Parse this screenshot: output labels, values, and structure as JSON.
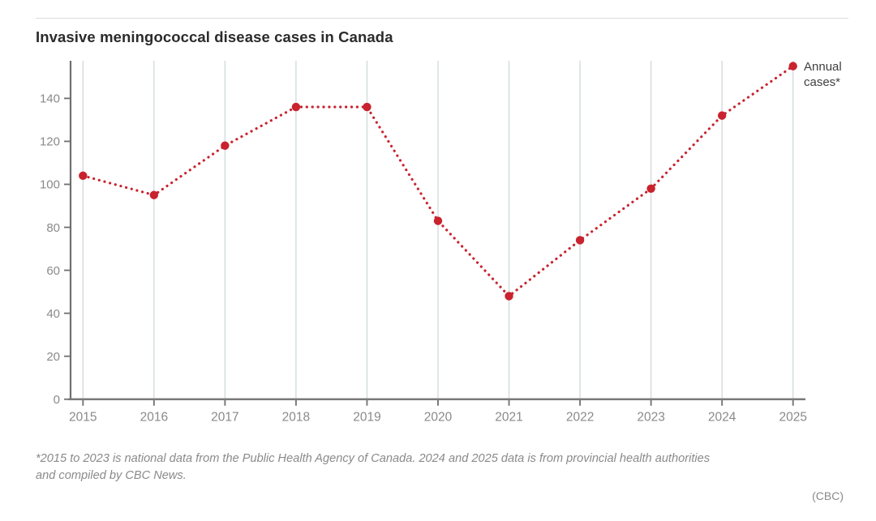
{
  "header": {
    "title": "Invasive meningococcal disease cases in Canada"
  },
  "chart_data": {
    "type": "line",
    "line_style": "dotted",
    "title": "Invasive meningococcal disease cases in Canada",
    "categories": [
      2015,
      2016,
      2017,
      2018,
      2019,
      2020,
      2021,
      2022,
      2023,
      2024,
      2025
    ],
    "series": [
      {
        "name": "Annual cases*",
        "values": [
          104,
          95,
          118,
          136,
          136,
          83,
          48,
          74,
          98,
          132,
          155
        ]
      }
    ],
    "xlabel": "",
    "ylabel": "",
    "ylim": [
      0,
      157.5
    ],
    "yticks": [
      0,
      20,
      40,
      60,
      80,
      100,
      120,
      140
    ],
    "grid": "vertical",
    "legend_position": "right-of-last-point",
    "colors": {
      "line": "#c8232e",
      "point": "#c8232e",
      "gridline": "#ccd6d8",
      "axis": "#6f6f6f",
      "tick_label": "#8a8a8a"
    }
  },
  "legend": {
    "label": "Annual cases*"
  },
  "footnote": {
    "line1": "*2015 to 2023 is national data from the Public Health Agency of Canada. 2024 and 2025 data is from provincial health authorities",
    "line2": "and compiled by CBC News."
  },
  "attribution": {
    "text": "(CBC)"
  }
}
